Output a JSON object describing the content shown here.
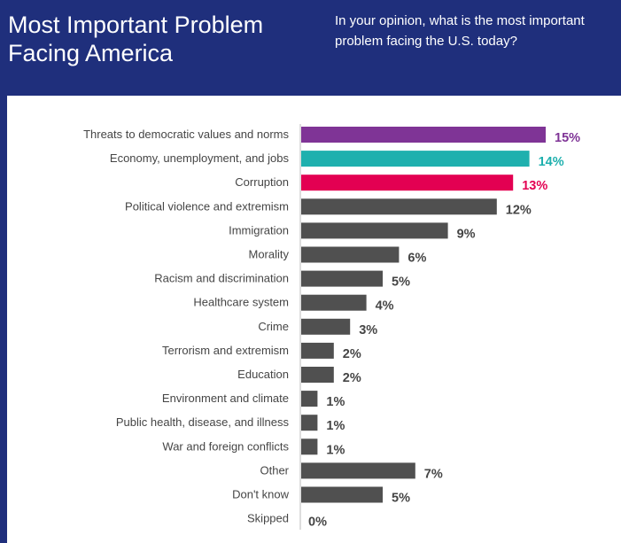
{
  "header": {
    "title": "Most Important Problem Facing America",
    "question": "In your opinion, what is the most important problem facing the U.S. today?"
  },
  "colors": {
    "background": "#1f2f7c",
    "default_bar": "#505050",
    "purple": "#7f3496",
    "teal": "#1fb0ae",
    "magenta": "#e30052"
  },
  "chart_data": {
    "type": "bar",
    "orientation": "horizontal",
    "title": "Most Important Problem Facing America",
    "subtitle": "In your opinion, what is the most important problem facing the U.S. today?",
    "xlabel": "",
    "ylabel": "",
    "xlim": [
      0,
      15
    ],
    "grid": false,
    "unit": "%",
    "categories": [
      "Threats to democratic values and norms",
      "Economy, unemployment, and jobs",
      "Corruption",
      "Political violence and extremism",
      "Immigration",
      "Morality",
      "Racism and discrimination",
      "Healthcare system",
      "Crime",
      "Terrorism and extremism",
      "Education",
      "Environment and climate",
      "Public health, disease, and illness",
      "War and foreign conflicts",
      "Other",
      "Don't know",
      "Skipped"
    ],
    "values": [
      15,
      14,
      13,
      12,
      9,
      6,
      5,
      4,
      3,
      2,
      2,
      1,
      1,
      1,
      7,
      5,
      0
    ],
    "labels": [
      "15%",
      "14%",
      "13%",
      "12%",
      "9%",
      "6%",
      "5%",
      "4%",
      "3%",
      "2%",
      "2%",
      "1%",
      "1%",
      "1%",
      "7%",
      "5%",
      "0%"
    ],
    "bar_colors": [
      "#7f3496",
      "#1fb0ae",
      "#e30052",
      "#505050",
      "#505050",
      "#505050",
      "#505050",
      "#505050",
      "#505050",
      "#505050",
      "#505050",
      "#505050",
      "#505050",
      "#505050",
      "#505050",
      "#505050",
      "#505050"
    ],
    "label_colors": [
      "#7f3496",
      "#1fb0ae",
      "#e30052",
      "#454545",
      "#454545",
      "#454545",
      "#454545",
      "#454545",
      "#454545",
      "#454545",
      "#454545",
      "#454545",
      "#454545",
      "#454545",
      "#454545",
      "#454545",
      "#454545"
    ]
  }
}
